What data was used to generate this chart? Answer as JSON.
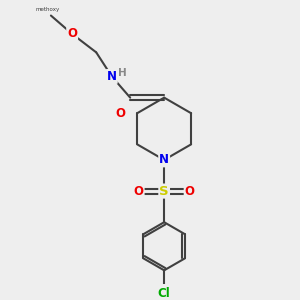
{
  "bg_color": "#eeeeee",
  "atom_colors": {
    "C": "#404040",
    "N": "#0000ee",
    "O": "#ee0000",
    "S": "#cccc00",
    "Cl": "#00aa00",
    "H": "#888888"
  },
  "bond_color": "#404040",
  "bond_width": 1.5,
  "font_size": 8.5
}
